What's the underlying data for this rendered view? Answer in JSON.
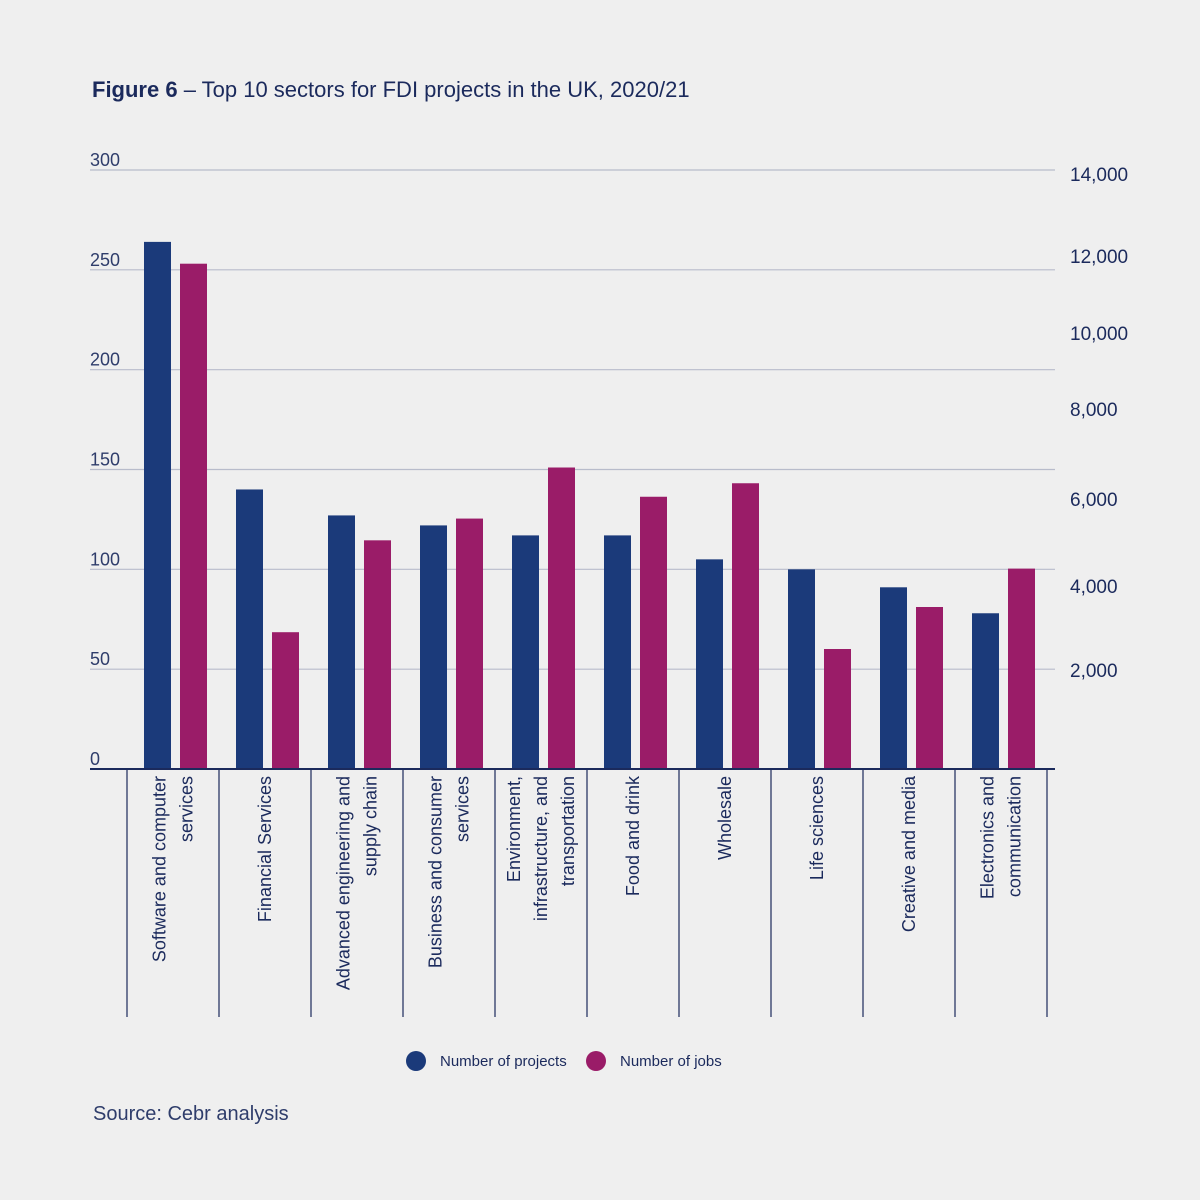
{
  "title": {
    "prefix": "Figure 6",
    "text": " – Top 10 sectors for FDI projects in the UK, 2020/21"
  },
  "source": "Source: Cebr analysis",
  "colors": {
    "projects": "#1b3a7a",
    "jobs": "#9a1c68",
    "grid": "#b8bccb",
    "axis": "#1b2a5c",
    "background": "#efefef"
  },
  "chart_data": {
    "type": "bar",
    "categories": [
      [
        "Software and computer",
        "services"
      ],
      [
        "Financial Services"
      ],
      [
        "Advanced engineering and",
        "supply chain"
      ],
      [
        "Business and consumer",
        "services"
      ],
      [
        "Environment,",
        "infrastructure, and",
        "transportation"
      ],
      [
        "Food and drink"
      ],
      [
        "Wholesale"
      ],
      [
        "Life sciences"
      ],
      [
        "Creative and media"
      ],
      [
        "Electronics and",
        "communication"
      ]
    ],
    "series": [
      {
        "name": "Number of projects",
        "axis": "left",
        "values": [
          264,
          140,
          127,
          122,
          117,
          117,
          105,
          100,
          91,
          78
        ]
      },
      {
        "name": "Number of jobs",
        "axis": "right",
        "values": [
          11800,
          2900,
          5050,
          5550,
          6700,
          6050,
          6350,
          2500,
          3500,
          4400
        ]
      }
    ],
    "left_axis": {
      "ticks": [
        "0",
        "50",
        "100",
        "150",
        "200",
        "250",
        "300"
      ],
      "range": [
        0,
        300
      ]
    },
    "right_axis": {
      "ticks": [
        "2,000",
        "4,000",
        "6,000",
        "8,000",
        "10,000",
        "12,000",
        "14,000"
      ]
    },
    "grid": true,
    "legend_position": "bottom"
  }
}
